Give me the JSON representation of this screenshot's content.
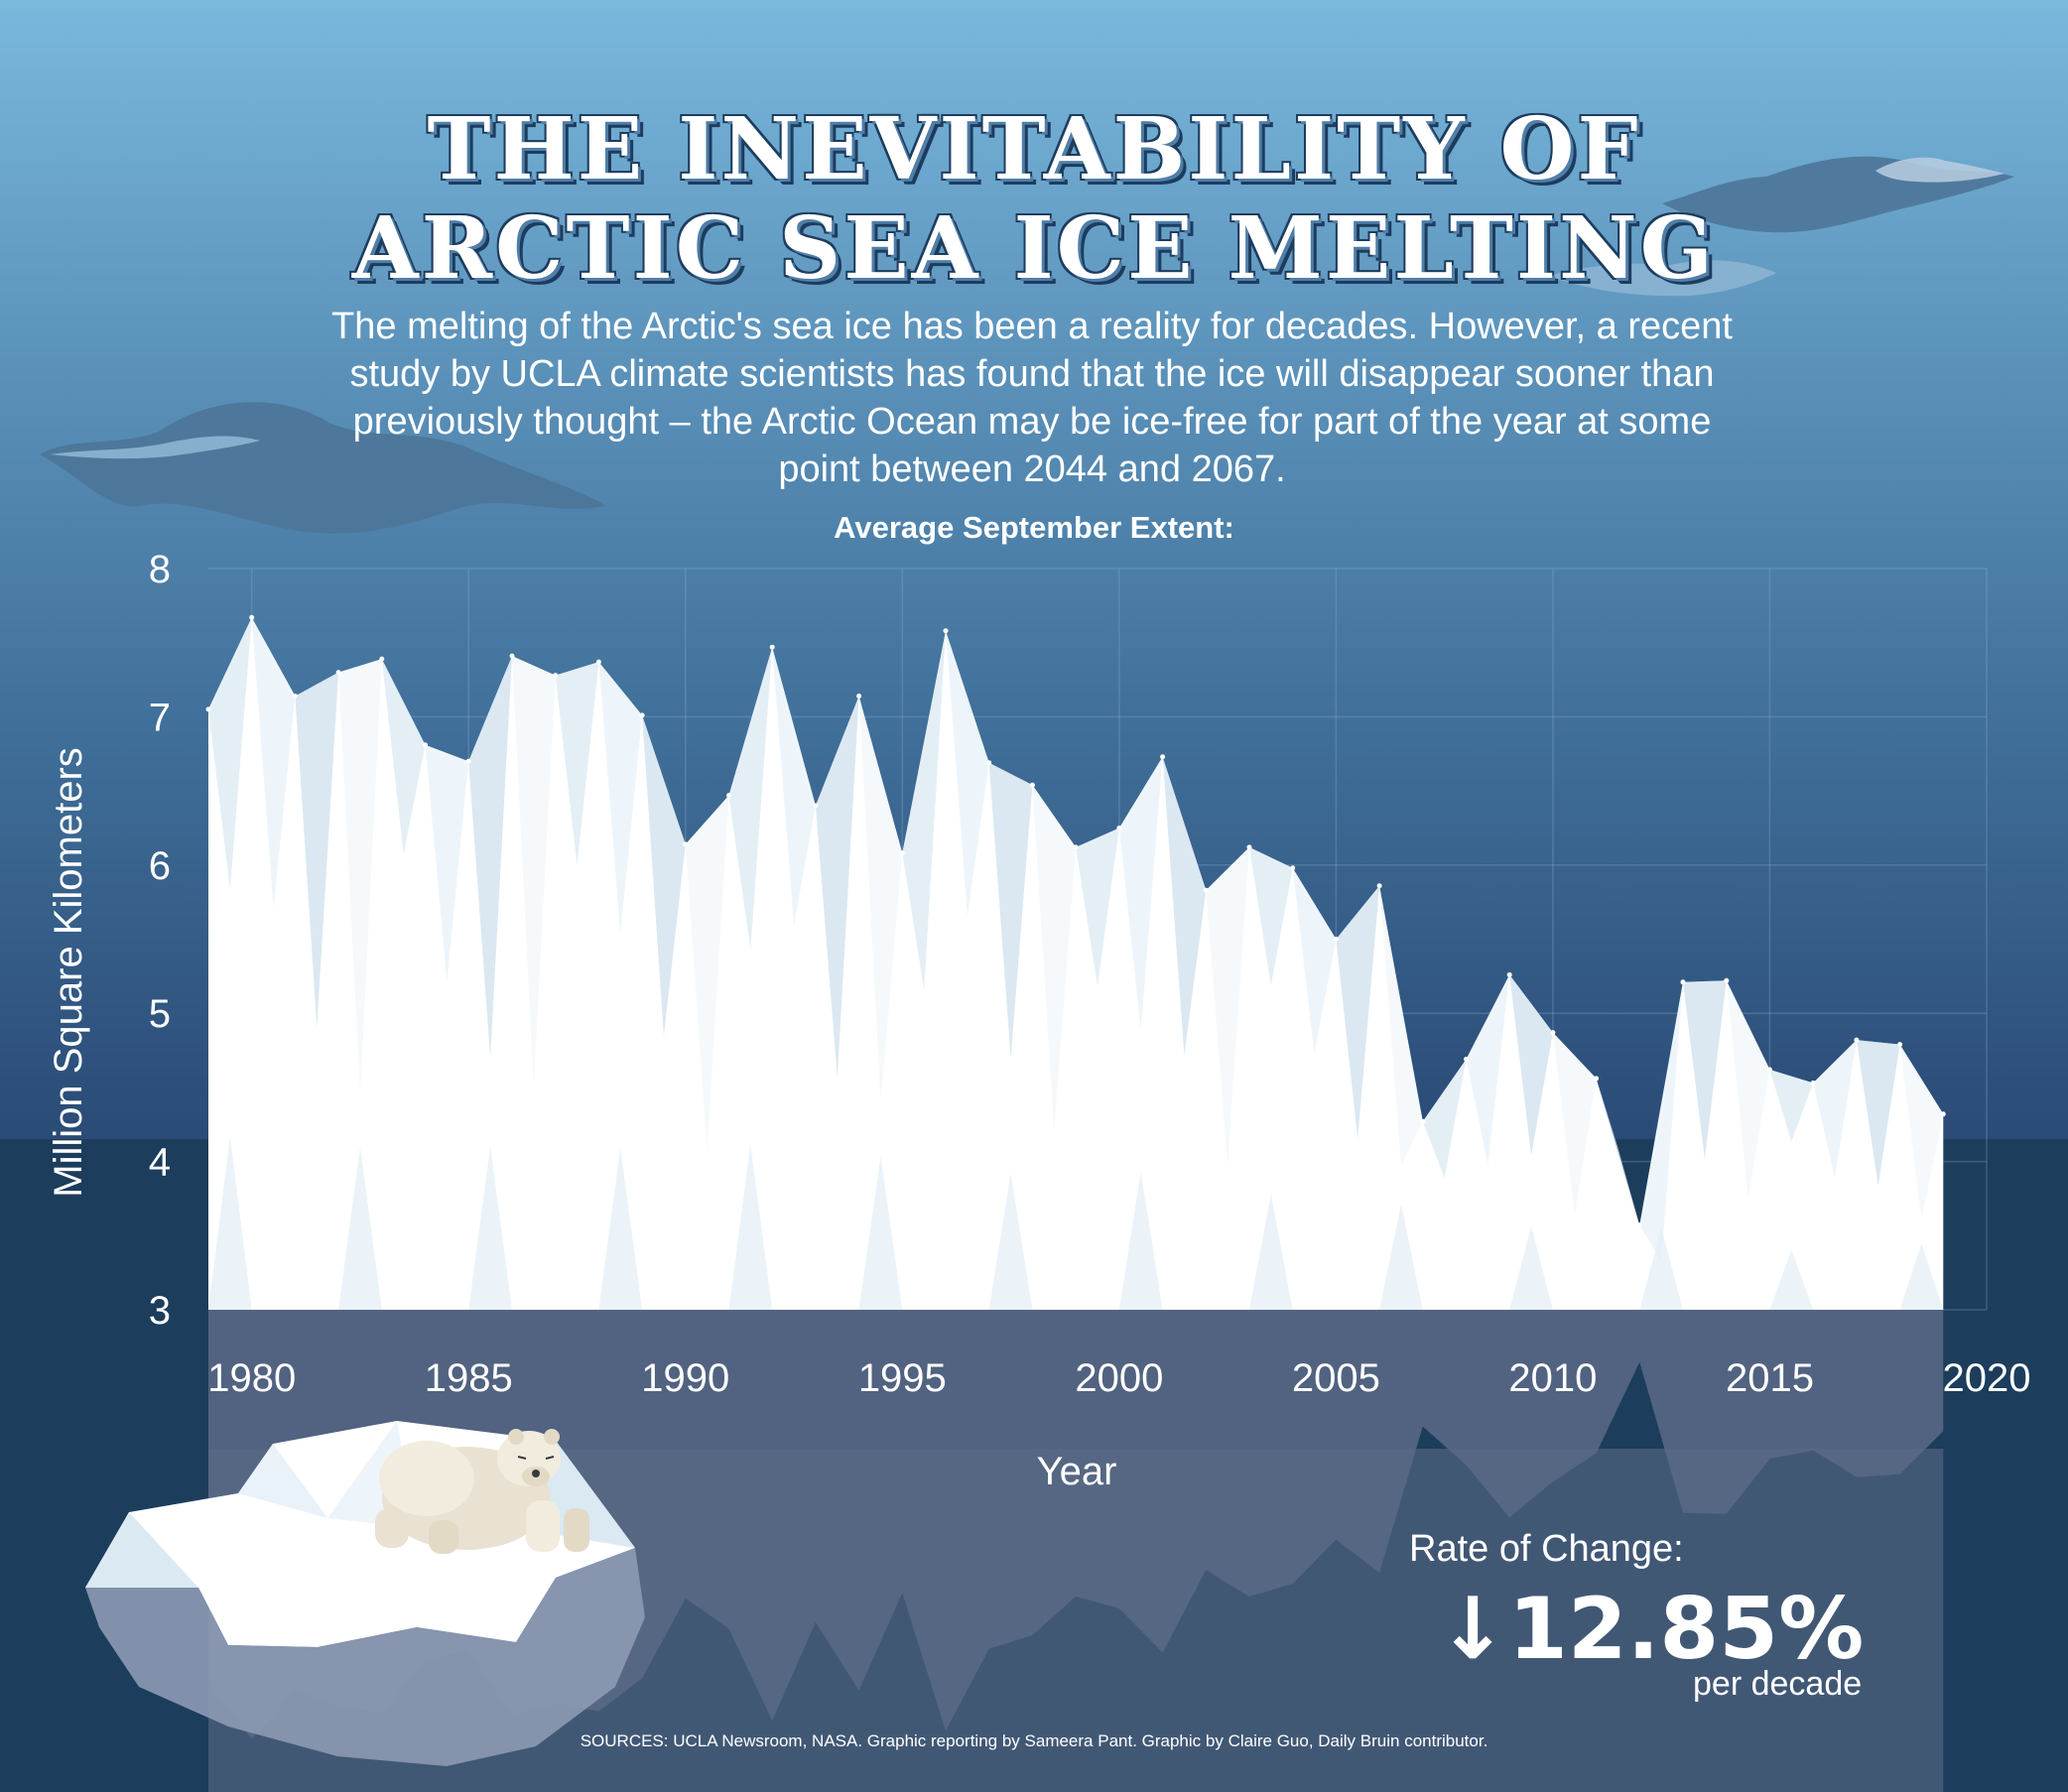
{
  "title": {
    "line1": "THE INEVITABILITY OF",
    "line2": "ARCTIC SEA ICE MELTING"
  },
  "subtitle": "The melting of the Arctic's sea ice has been a reality for decades. However, a recent study by UCLA climate scientists has found that the ice will disappear sooner than previously thought – the Arctic Ocean may be ice-free for part of the year at some point between 2044 and 2067.",
  "rate": {
    "label": "Rate of Change:",
    "value": "↓12.85%",
    "unit": "per decade"
  },
  "sources": "SOURCES: UCLA Newsroom, NASA. Graphic reporting by Sameera Pant. Graphic by Claire Guo, Daily Bruin contributor.",
  "colors": {
    "sky_top": "#7ab8dc",
    "sea": "#1c3d5c",
    "ice": "#ffffff",
    "ice_shade": "#dbe9f2",
    "reflection": "#5a6a86",
    "cloud": "#4d7598"
  },
  "chart_data": {
    "type": "area",
    "title": "Average September Extent:",
    "xlabel": "Year",
    "ylabel": "Million Square Kilometers",
    "xlim": [
      1979,
      2020
    ],
    "ylim": [
      3,
      8
    ],
    "xticks": [
      1980,
      1985,
      1990,
      1995,
      2000,
      2005,
      2010,
      2015,
      2020
    ],
    "yticks": [
      3,
      4,
      5,
      6,
      7,
      8
    ],
    "grid": true,
    "series": [
      {
        "x": [
          1979,
          1980,
          1981,
          1982,
          1983,
          1984,
          1985,
          1986,
          1987,
          1988,
          1989,
          1990,
          1991,
          1992,
          1993,
          1994,
          1995,
          1996,
          1997,
          1998,
          1999,
          2000,
          2001,
          2002,
          2003,
          2004,
          2005,
          2006,
          2007,
          2008,
          2009,
          2010,
          2011,
          2012,
          2013,
          2014,
          2015,
          2016,
          2017,
          2018,
          2019
        ],
        "values": [
          7.05,
          7.67,
          7.14,
          7.3,
          7.39,
          6.81,
          6.7,
          7.41,
          7.28,
          7.37,
          7.01,
          6.14,
          6.47,
          7.47,
          6.4,
          7.14,
          6.08,
          7.58,
          6.69,
          6.54,
          6.12,
          6.25,
          6.73,
          5.83,
          6.12,
          5.98,
          5.5,
          5.86,
          4.27,
          4.69,
          5.26,
          4.87,
          4.56,
          3.57,
          5.21,
          5.22,
          4.62,
          4.53,
          4.82,
          4.79,
          4.32
        ]
      }
    ]
  }
}
